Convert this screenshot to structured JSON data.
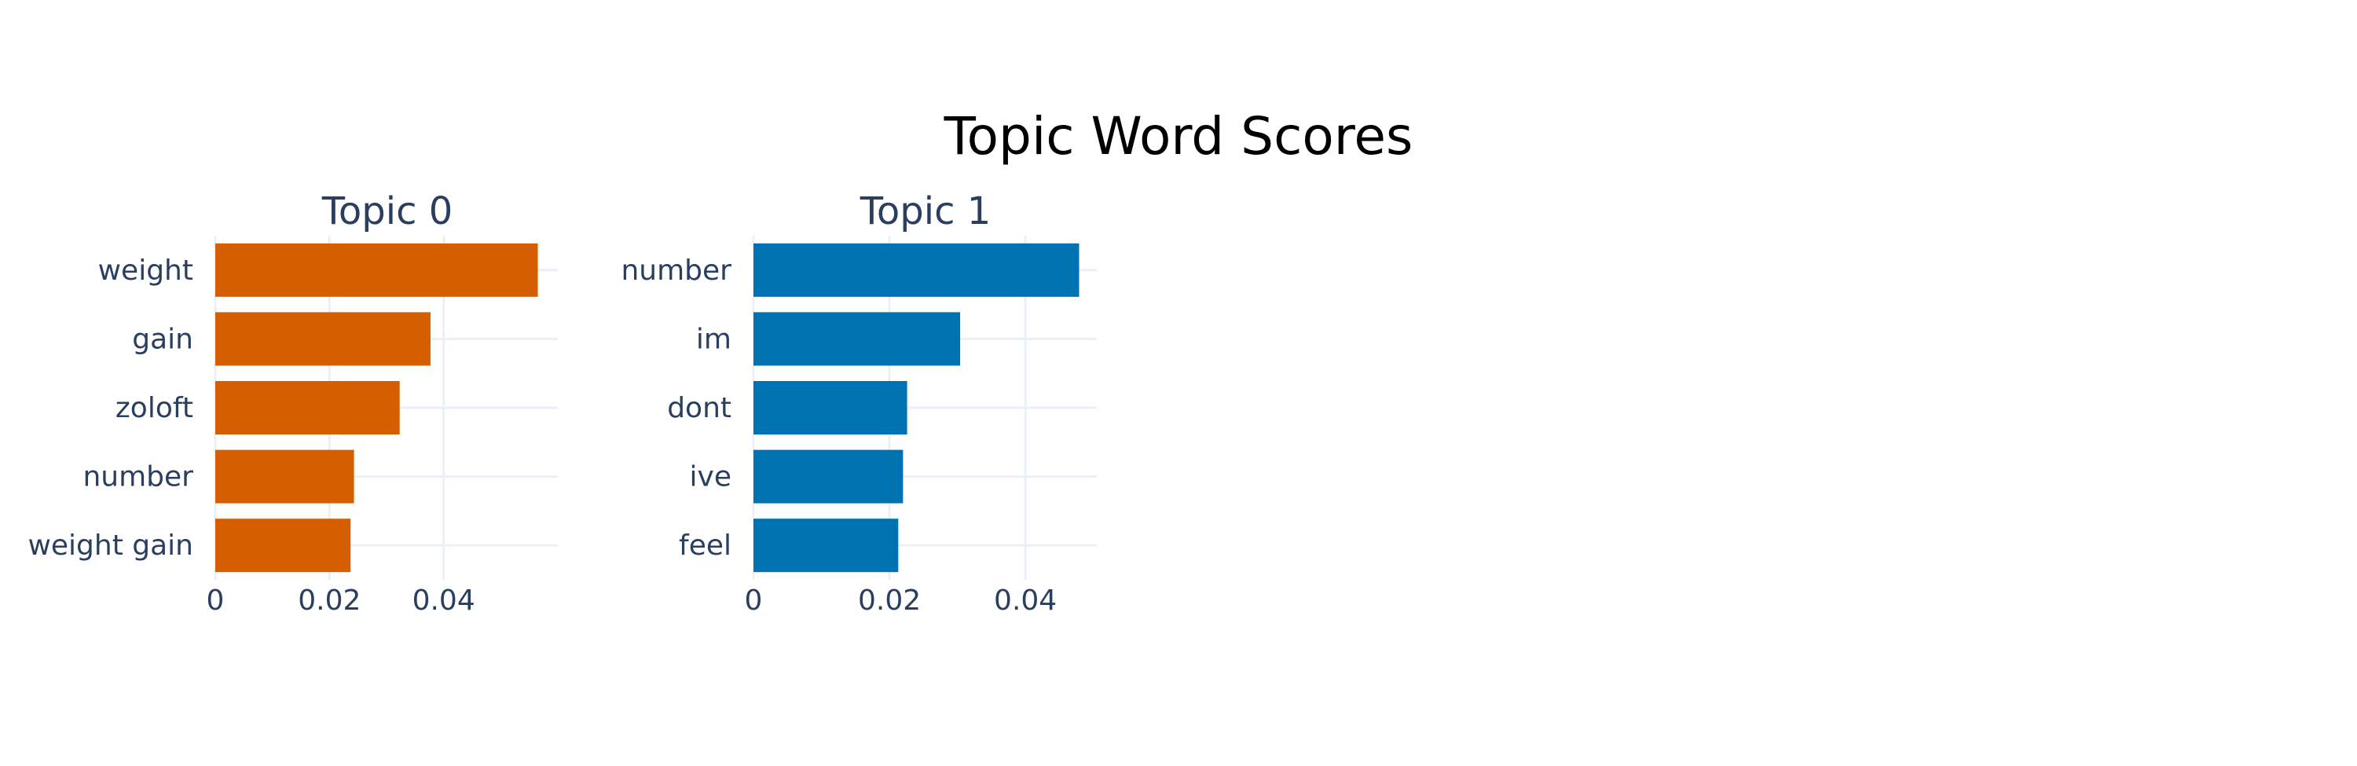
{
  "chart_data": {
    "type": "bar",
    "orientation": "horizontal",
    "title": "Topic Word Scores",
    "grid": true,
    "panels": [
      {
        "title": "Topic 0",
        "color": "#D55E00",
        "categories": [
          "weight",
          "gain",
          "zoloft",
          "number",
          "weight gain"
        ],
        "values": [
          0.0565,
          0.0377,
          0.0323,
          0.0243,
          0.0237
        ],
        "xlim": [
          0,
          0.06
        ],
        "xticks": [
          0,
          0.02,
          0.04
        ],
        "xtick_labels": [
          "0",
          "0.02",
          "0.04"
        ]
      },
      {
        "title": "Topic 1",
        "color": "#0072B2",
        "categories": [
          "number",
          "im",
          "dont",
          "ive",
          "feel"
        ],
        "values": [
          0.0479,
          0.0304,
          0.0226,
          0.022,
          0.0213
        ],
        "xlim": [
          0,
          0.0505
        ],
        "xticks": [
          0,
          0.02,
          0.04
        ],
        "xtick_labels": [
          "0",
          "0.02",
          "0.04"
        ]
      }
    ]
  }
}
